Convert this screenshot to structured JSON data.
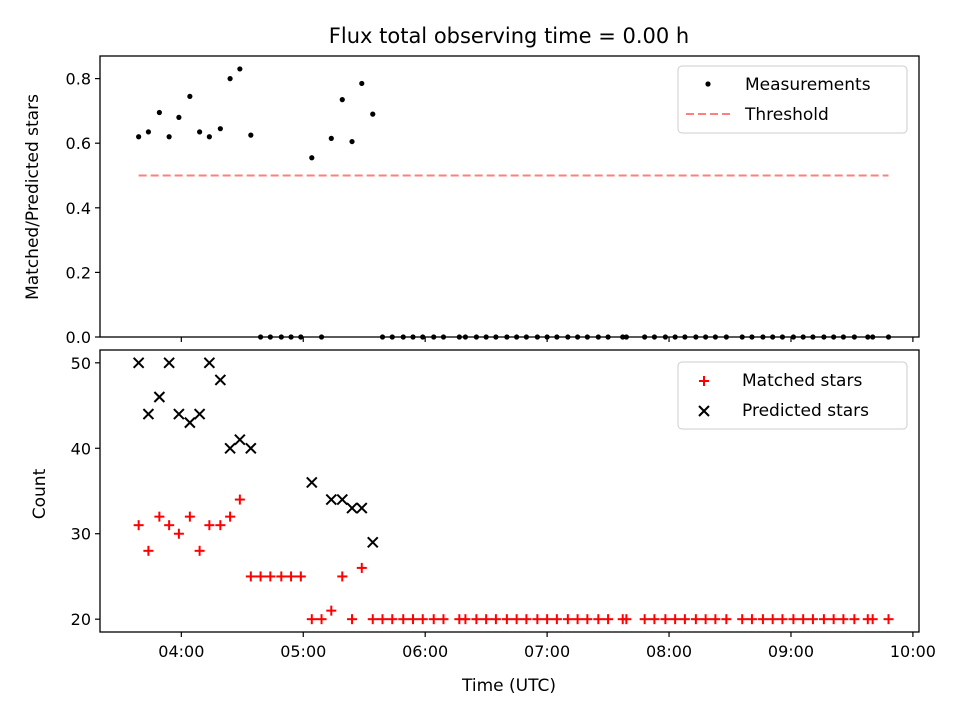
{
  "chart_data": [
    {
      "type": "scatter",
      "title": "Flux total observing time = 0.00 h",
      "xlabel": "",
      "ylabel": "Matched/Predicted stars",
      "ylim": [
        0,
        0.87
      ],
      "yticks": [
        "0.0",
        "0.2",
        "0.4",
        "0.6",
        "0.8"
      ],
      "xlim_hours": [
        3.333,
        10.05
      ],
      "grid": false,
      "legend_position": "top-right",
      "series": [
        {
          "name": "Measurements",
          "marker": "dot",
          "color": "#000000",
          "points": [
            [
              3.65,
              0.62
            ],
            [
              3.73,
              0.635
            ],
            [
              3.82,
              0.695
            ],
            [
              3.9,
              0.62
            ],
            [
              3.98,
              0.68
            ],
            [
              4.07,
              0.745
            ],
            [
              4.15,
              0.635
            ],
            [
              4.23,
              0.62
            ],
            [
              4.32,
              0.645
            ],
            [
              4.4,
              0.8
            ],
            [
              4.48,
              0.83
            ],
            [
              4.57,
              0.625
            ],
            [
              4.65,
              0
            ],
            [
              4.73,
              0
            ],
            [
              4.82,
              0
            ],
            [
              4.9,
              0
            ],
            [
              4.98,
              0
            ],
            [
              5.07,
              0.555
            ],
            [
              5.15,
              0
            ],
            [
              5.23,
              0.615
            ],
            [
              5.32,
              0.735
            ],
            [
              5.4,
              0.605
            ],
            [
              5.48,
              0.785
            ],
            [
              5.57,
              0.69
            ],
            [
              5.65,
              0
            ],
            [
              5.73,
              0
            ],
            [
              5.82,
              0
            ],
            [
              5.9,
              0
            ],
            [
              5.98,
              0
            ],
            [
              6.07,
              0
            ],
            [
              6.15,
              0
            ],
            [
              6.28,
              0
            ],
            [
              6.33,
              0
            ],
            [
              6.42,
              0
            ],
            [
              6.5,
              0
            ],
            [
              6.58,
              0
            ],
            [
              6.67,
              0
            ],
            [
              6.75,
              0
            ],
            [
              6.83,
              0
            ],
            [
              6.92,
              0
            ],
            [
              7.0,
              0
            ],
            [
              7.08,
              0
            ],
            [
              7.17,
              0
            ],
            [
              7.25,
              0
            ],
            [
              7.33,
              0
            ],
            [
              7.42,
              0
            ],
            [
              7.5,
              0
            ],
            [
              7.62,
              0
            ],
            [
              7.65,
              0
            ],
            [
              7.8,
              0
            ],
            [
              7.88,
              0
            ],
            [
              7.97,
              0
            ],
            [
              8.05,
              0
            ],
            [
              8.13,
              0
            ],
            [
              8.22,
              0
            ],
            [
              8.3,
              0
            ],
            [
              8.38,
              0
            ],
            [
              8.47,
              0
            ],
            [
              8.6,
              0
            ],
            [
              8.68,
              0
            ],
            [
              8.77,
              0
            ],
            [
              8.85,
              0
            ],
            [
              8.93,
              0
            ],
            [
              9.02,
              0
            ],
            [
              9.1,
              0
            ],
            [
              9.18,
              0
            ],
            [
              9.27,
              0
            ],
            [
              9.35,
              0
            ],
            [
              9.43,
              0
            ],
            [
              9.52,
              0
            ],
            [
              9.63,
              0
            ],
            [
              9.67,
              0
            ],
            [
              9.8,
              0
            ]
          ]
        },
        {
          "name": "Threshold",
          "marker": "dashed-line",
          "color": "#ff7f7f",
          "points": [
            [
              3.65,
              0.5
            ],
            [
              9.8,
              0.5
            ]
          ]
        }
      ]
    },
    {
      "type": "scatter",
      "title": "",
      "xlabel": "Time (UTC)",
      "ylabel": "Count",
      "ylim": [
        18.5,
        51.5
      ],
      "yticks": [
        "20",
        "30",
        "40",
        "50"
      ],
      "xlim_hours": [
        3.333,
        10.05
      ],
      "xticks": [
        "04:00",
        "05:00",
        "06:00",
        "07:00",
        "08:00",
        "09:00",
        "10:00"
      ],
      "grid": false,
      "legend_position": "top-right",
      "series": [
        {
          "name": "Matched stars",
          "marker": "plus",
          "color": "#ff0000",
          "points": [
            [
              3.65,
              31
            ],
            [
              3.73,
              28
            ],
            [
              3.82,
              32
            ],
            [
              3.9,
              31
            ],
            [
              3.98,
              30
            ],
            [
              4.07,
              32
            ],
            [
              4.15,
              28
            ],
            [
              4.23,
              31
            ],
            [
              4.32,
              31
            ],
            [
              4.4,
              32
            ],
            [
              4.48,
              34
            ],
            [
              4.57,
              25
            ],
            [
              4.65,
              25
            ],
            [
              4.73,
              25
            ],
            [
              4.82,
              25
            ],
            [
              4.9,
              25
            ],
            [
              4.98,
              25
            ],
            [
              5.07,
              20
            ],
            [
              5.15,
              20
            ],
            [
              5.23,
              21
            ],
            [
              5.32,
              25
            ],
            [
              5.4,
              20
            ],
            [
              5.48,
              26
            ],
            [
              5.57,
              20
            ],
            [
              5.65,
              20
            ],
            [
              5.73,
              20
            ],
            [
              5.82,
              20
            ],
            [
              5.9,
              20
            ],
            [
              5.98,
              20
            ],
            [
              6.07,
              20
            ],
            [
              6.15,
              20
            ],
            [
              6.28,
              20
            ],
            [
              6.33,
              20
            ],
            [
              6.42,
              20
            ],
            [
              6.5,
              20
            ],
            [
              6.58,
              20
            ],
            [
              6.67,
              20
            ],
            [
              6.75,
              20
            ],
            [
              6.83,
              20
            ],
            [
              6.92,
              20
            ],
            [
              7.0,
              20
            ],
            [
              7.08,
              20
            ],
            [
              7.17,
              20
            ],
            [
              7.25,
              20
            ],
            [
              7.33,
              20
            ],
            [
              7.42,
              20
            ],
            [
              7.5,
              20
            ],
            [
              7.62,
              20
            ],
            [
              7.65,
              20
            ],
            [
              7.8,
              20
            ],
            [
              7.88,
              20
            ],
            [
              7.97,
              20
            ],
            [
              8.05,
              20
            ],
            [
              8.13,
              20
            ],
            [
              8.22,
              20
            ],
            [
              8.3,
              20
            ],
            [
              8.38,
              20
            ],
            [
              8.47,
              20
            ],
            [
              8.6,
              20
            ],
            [
              8.68,
              20
            ],
            [
              8.77,
              20
            ],
            [
              8.85,
              20
            ],
            [
              8.93,
              20
            ],
            [
              9.02,
              20
            ],
            [
              9.1,
              20
            ],
            [
              9.18,
              20
            ],
            [
              9.27,
              20
            ],
            [
              9.35,
              20
            ],
            [
              9.43,
              20
            ],
            [
              9.52,
              20
            ],
            [
              9.63,
              20
            ],
            [
              9.67,
              20
            ],
            [
              9.8,
              20
            ]
          ]
        },
        {
          "name": "Predicted stars",
          "marker": "x",
          "color": "#000000",
          "points": [
            [
              3.65,
              50
            ],
            [
              3.73,
              44
            ],
            [
              3.82,
              46
            ],
            [
              3.9,
              50
            ],
            [
              3.98,
              44
            ],
            [
              4.07,
              43
            ],
            [
              4.15,
              44
            ],
            [
              4.23,
              50
            ],
            [
              4.32,
              48
            ],
            [
              4.4,
              40
            ],
            [
              4.48,
              41
            ],
            [
              4.57,
              40
            ],
            [
              5.07,
              36
            ],
            [
              5.23,
              34
            ],
            [
              5.32,
              34
            ],
            [
              5.4,
              33
            ],
            [
              5.48,
              33
            ],
            [
              5.57,
              29
            ]
          ]
        }
      ]
    }
  ]
}
